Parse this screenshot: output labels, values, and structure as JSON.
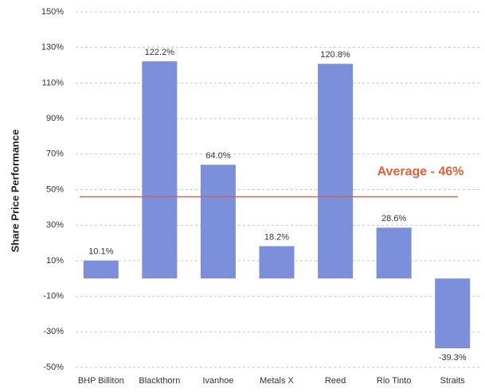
{
  "chart_data": {
    "type": "bar",
    "y_label": "Share Price Performance",
    "categories": [
      "BHP Billiton",
      "Blackthorn",
      "Ivanhoe",
      "Metals X",
      "Reed",
      "Rio Tinto",
      "Straits"
    ],
    "values": [
      10.1,
      122.2,
      64.0,
      18.2,
      120.8,
      28.6,
      -39.3
    ],
    "value_labels": [
      "10.1%",
      "122.2%",
      "64.0%",
      "18.2%",
      "120.8%",
      "28.6%",
      "-39.3%"
    ],
    "color": "#7b8fdb",
    "ylim": [
      -50,
      150
    ],
    "yticks": [
      {
        "value": -50,
        "label": "-50%"
      },
      {
        "value": -30,
        "label": "-30%"
      },
      {
        "value": -10,
        "label": "-10%"
      },
      {
        "value": 10,
        "label": "10%"
      },
      {
        "value": 30,
        "label": "30%"
      },
      {
        "value": 50,
        "label": "50%"
      },
      {
        "value": 70,
        "label": "70%"
      },
      {
        "value": 90,
        "label": "90%"
      },
      {
        "value": 110,
        "label": "110%"
      },
      {
        "value": 130,
        "label": "130%"
      },
      {
        "value": 150,
        "label": "150%"
      }
    ],
    "grid": true,
    "average": {
      "value": 46,
      "label": "Average - 46%",
      "color": "#e0603a"
    }
  }
}
